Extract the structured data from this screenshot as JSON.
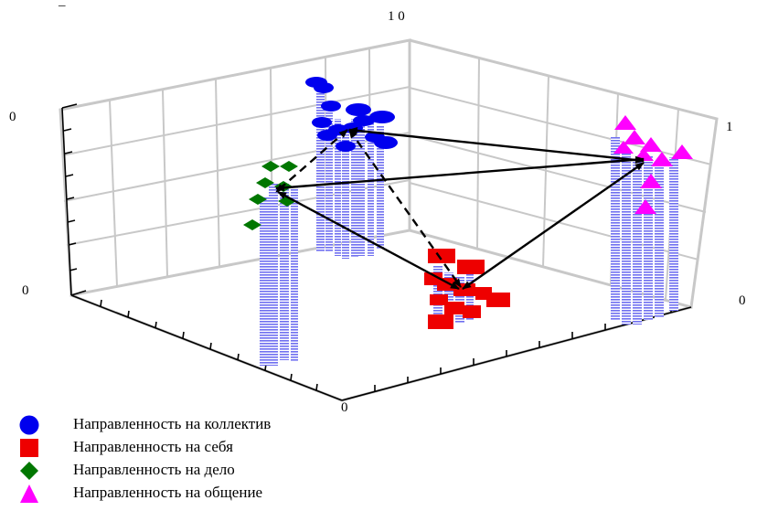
{
  "chart_data": {
    "type": "3d-bar-scatter",
    "tick_labels": {
      "top_right": "1 0",
      "top_left_minus": "–",
      "left_upper": "0",
      "left_lower": "0",
      "right_upper": "1",
      "right_lower": "0",
      "bottom": "0"
    },
    "legend": [
      {
        "label": "Направленность на коллектив",
        "color": "#0000ee",
        "marker": "circle"
      },
      {
        "label": "Направленность на себя",
        "color": "#ee0000",
        "marker": "square"
      },
      {
        "label": "Направленность на дело",
        "color": "#007700",
        "marker": "diamond"
      },
      {
        "label": "Направленность на общение",
        "color": "#ff00ff",
        "marker": "triangle"
      }
    ],
    "arrow_links": [
      {
        "from": "Направленность на коллектив",
        "to": "Направленность на общение",
        "style": "solid"
      },
      {
        "from": "Направленность на коллектив",
        "to": "Направленность на себя",
        "style": "solid"
      },
      {
        "from": "Направленность на коллектив",
        "to": "Направленность на дело",
        "style": "dashed"
      },
      {
        "from": "Направленность на дело",
        "to": "Направленность на общение",
        "style": "solid"
      },
      {
        "from": "Направленность на дело",
        "to": "Направленность на себя",
        "style": "solid"
      },
      {
        "from": "Направленность на себя",
        "to": "Направленность на общение",
        "style": "solid"
      }
    ]
  }
}
